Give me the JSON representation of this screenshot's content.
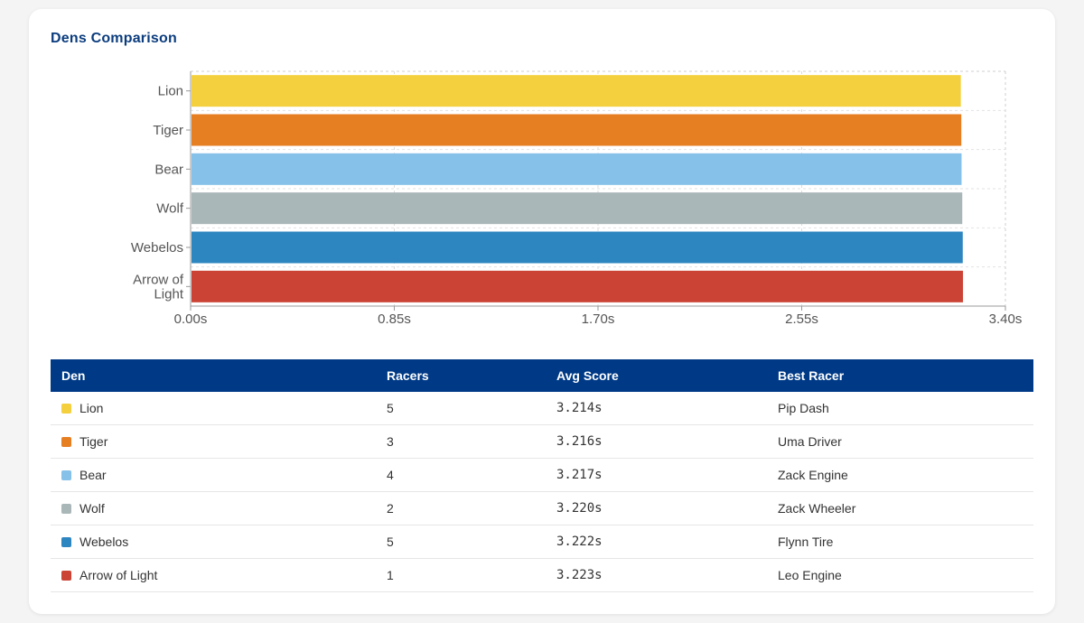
{
  "title": "Dens Comparison",
  "chart_data": {
    "type": "bar",
    "orientation": "horizontal",
    "categories": [
      "Lion",
      "Tiger",
      "Bear",
      "Wolf",
      "Webelos",
      "Arrow of Light"
    ],
    "values": [
      3.214,
      3.216,
      3.217,
      3.22,
      3.222,
      3.223
    ],
    "colors": [
      "#f4d03f",
      "#e67e22",
      "#85c1e9",
      "#aab7b8",
      "#2e86c1",
      "#cb4335"
    ],
    "xlim": [
      0,
      3.4
    ],
    "xticks": [
      "0.00s",
      "0.85s",
      "1.70s",
      "2.55s",
      "3.40s"
    ],
    "grid": true,
    "xlabel": "",
    "ylabel": ""
  },
  "table": {
    "headers": {
      "den": "Den",
      "racers": "Racers",
      "avg": "Avg Score",
      "best": "Best Racer"
    },
    "rows": [
      {
        "den": "Lion",
        "color": "#f4d03f",
        "racers": "5",
        "avg": "3.214s",
        "best": "Pip Dash"
      },
      {
        "den": "Tiger",
        "color": "#e67e22",
        "racers": "3",
        "avg": "3.216s",
        "best": "Uma Driver"
      },
      {
        "den": "Bear",
        "color": "#85c1e9",
        "racers": "4",
        "avg": "3.217s",
        "best": "Zack Engine"
      },
      {
        "den": "Wolf",
        "color": "#aab7b8",
        "racers": "2",
        "avg": "3.220s",
        "best": "Zack Wheeler"
      },
      {
        "den": "Webelos",
        "color": "#2e86c1",
        "racers": "5",
        "avg": "3.222s",
        "best": "Flynn Tire"
      },
      {
        "den": "Arrow of Light",
        "color": "#cb4335",
        "racers": "1",
        "avg": "3.223s",
        "best": "Leo Engine"
      }
    ]
  }
}
